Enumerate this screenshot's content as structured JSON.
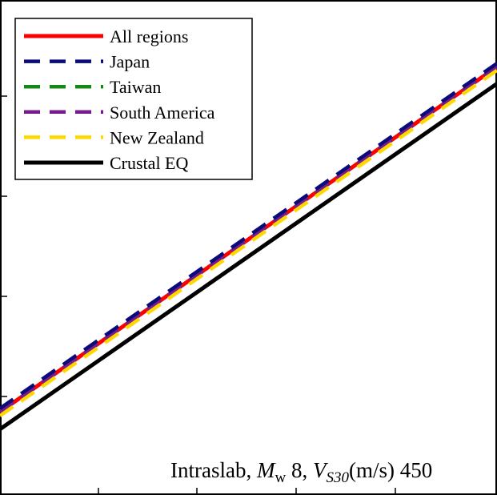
{
  "chart_data": {
    "type": "line",
    "title": "",
    "xlabel": "",
    "ylabel": "",
    "grid": false,
    "legend_position": "top-left",
    "annotation": {
      "prefix": "Intraslab, ",
      "mw_symbol": "M",
      "mw_sub": "w",
      "mw_value": " 8, ",
      "vs_symbol": "V",
      "vs_sub": "S30",
      "vs_unit": "(m/s) 450"
    },
    "series": [
      {
        "name": "All regions",
        "color": "#ff0000",
        "dash": "solid",
        "x": [
          0,
          1
        ],
        "y": [
          0.168,
          0.865
        ]
      },
      {
        "name": "Japan",
        "color": "#0a0a7a",
        "dash": "dashed",
        "x": [
          0,
          1
        ],
        "y": [
          0.175,
          0.872
        ]
      },
      {
        "name": "Taiwan",
        "color": "#138a13",
        "dash": "dashed",
        "x": [
          0,
          1
        ],
        "y": [
          0.168,
          0.865
        ]
      },
      {
        "name": "South America",
        "color": "#7a1a8c",
        "dash": "dashed",
        "x": [
          0,
          1
        ],
        "y": [
          0.168,
          0.865
        ]
      },
      {
        "name": "New Zealand",
        "color": "#ffd800",
        "dash": "dashed",
        "x": [
          0,
          1
        ],
        "y": [
          0.16,
          0.858
        ]
      },
      {
        "name": "Crustal EQ",
        "color": "#000000",
        "dash": "solid",
        "x": [
          0,
          1
        ],
        "y": [
          0.133,
          0.831
        ]
      }
    ],
    "xlim": [
      0,
      1
    ],
    "ylim": [
      0,
      1
    ]
  }
}
